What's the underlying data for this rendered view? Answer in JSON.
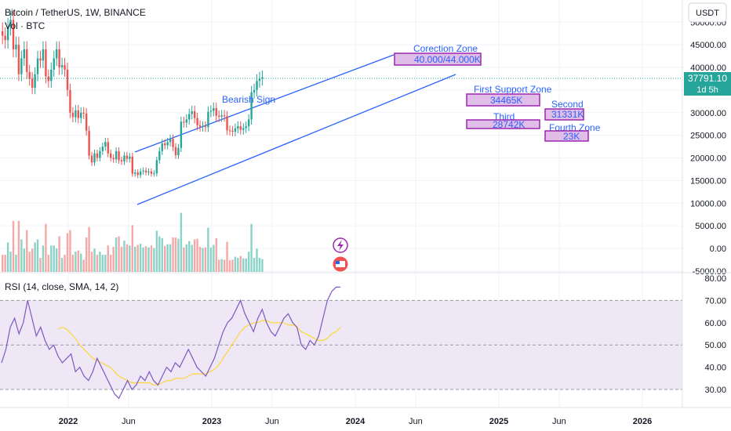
{
  "header": {
    "symbol_line": "Bitcoin / TetherUS, 1W, BINANCE",
    "volume_line": "Vol · BTC"
  },
  "price_scale": {
    "currency_button": "USDT",
    "current_price": "37791.10",
    "countdown": "1d 5h"
  },
  "rsi": {
    "label": "RSI (14, close, SMA, 14, 2)"
  },
  "annotations": {
    "bearish_sign": "Bearish Sign",
    "correction_title": "Corection Zone",
    "correction_value": "40.000/44.000K",
    "first_support_title": "First Support Zone",
    "first_support_value": "34465K",
    "second_title": "Second",
    "second_value": "31331K",
    "third_title": "Third",
    "third_value": "28742K",
    "fourth_title": "Fourth Zone",
    "fourth_value": "23K"
  },
  "colors": {
    "up": "#26a69a",
    "down": "#ef5350",
    "channel": "#2962ff",
    "zone_fill": "#e1bee7",
    "zone_border": "#9c27b0",
    "rsi_line": "#7e57c2",
    "rsi_ma": "#fdd835",
    "rsi_band": "#ede7f6",
    "badge": "#2962ff"
  },
  "chart_data": [
    {
      "type": "candlestick",
      "title": "Bitcoin / TetherUS, 1W, BINANCE",
      "x_tick_labels": [
        "2022",
        "Jun",
        "2023",
        "Jun",
        "2024",
        "Jun",
        "2025",
        "Jun",
        "2026"
      ],
      "y_tick_labels": [
        "50000.00",
        "45000.00",
        "40000.00",
        "35000.00",
        "30000.00",
        "25000.00",
        "20000.00",
        "15000.00",
        "10000.00",
        "5000.00",
        "0.00",
        "-5000.00"
      ],
      "ylim": [
        -5000,
        50000
      ],
      "last_price": 37791.1,
      "channel": {
        "upper": [
          [
            "2022-06",
            21800
          ],
          [
            "2023-12",
            44000
          ]
        ],
        "lower": [
          [
            "2022-06",
            9700
          ],
          [
            "2024-03",
            38900
          ]
        ]
      },
      "zones": [
        {
          "name": "Corection Zone",
          "range": [
            40000,
            44000
          ]
        },
        {
          "name": "First Support Zone",
          "value": 34465
        },
        {
          "name": "Second",
          "value": 31331
        },
        {
          "name": "Third",
          "value": 28742
        },
        {
          "name": "Fourth Zone",
          "value": 23000
        }
      ]
    },
    {
      "type": "line",
      "title": "RSI (14, close, SMA, 14, 2)",
      "y_tick_labels": [
        "80.00",
        "70.00",
        "60.00",
        "50.00",
        "40.00",
        "30.00"
      ],
      "ylim": [
        24,
        80
      ],
      "band": [
        30,
        70
      ],
      "midline": 50,
      "series_rsi": [
        42,
        48,
        58,
        62,
        55,
        60,
        70,
        62,
        54,
        58,
        52,
        48,
        50,
        45,
        42,
        44,
        46,
        38,
        40,
        36,
        34,
        38,
        44,
        40,
        36,
        32,
        28,
        26,
        30,
        34,
        30,
        32,
        36,
        34,
        38,
        34,
        32,
        36,
        40,
        38,
        42,
        40,
        44,
        48,
        44,
        40,
        38,
        36,
        40,
        44,
        50,
        56,
        60,
        62,
        66,
        70,
        64,
        60,
        56,
        62,
        66,
        60,
        56,
        54,
        58,
        62,
        64,
        60,
        58,
        50,
        48,
        52,
        50,
        54,
        62,
        70,
        74,
        76,
        76
      ],
      "series_sma": [
        null,
        null,
        null,
        null,
        null,
        null,
        null,
        null,
        null,
        null,
        null,
        null,
        null,
        57,
        58,
        57,
        55,
        53,
        50,
        48,
        46,
        44,
        43,
        42,
        41,
        40,
        38,
        36,
        35,
        34,
        33,
        33,
        33,
        33,
        33,
        32,
        32,
        33,
        34,
        34,
        35,
        35,
        35,
        36,
        37,
        37,
        37,
        37,
        38,
        39,
        41,
        44,
        47,
        50,
        53,
        56,
        58,
        59,
        60,
        60,
        61,
        61,
        60,
        60,
        60,
        60,
        59,
        59,
        58,
        56,
        55,
        54,
        53,
        52,
        52,
        53,
        55,
        56,
        58
      ]
    }
  ]
}
